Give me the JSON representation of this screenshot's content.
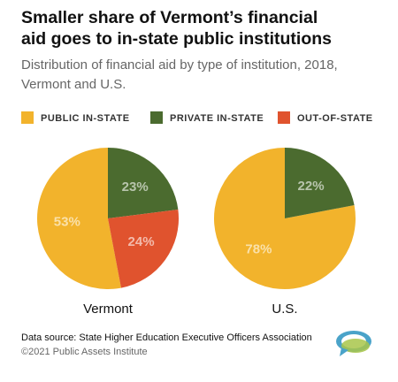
{
  "header": {
    "title": [
      "Smaller share of Vermont’s financial",
      "aid goes to in-state public institutions"
    ],
    "subtitle": [
      "Distribution of financial aid by type of institution, 2018,",
      "Vermont and U.S."
    ]
  },
  "chart_data": [
    {
      "type": "pie",
      "title": "Vermont",
      "categories": [
        "PUBLIC IN-STATE",
        "PRIVATE IN-STATE",
        "OUT-OF-STATE"
      ],
      "values": [
        53,
        23,
        24
      ],
      "value_labels": [
        "53%",
        "23%",
        "24%"
      ],
      "colors": [
        "#f2b32c",
        "#4b6b2f",
        "#e0532e"
      ]
    },
    {
      "type": "pie",
      "title": "U.S.",
      "categories": [
        "PUBLIC IN-STATE",
        "PRIVATE IN-STATE"
      ],
      "values": [
        78,
        22
      ],
      "value_labels": [
        "78%",
        "22%"
      ],
      "colors": [
        "#f2b32c",
        "#4b6b2f"
      ]
    }
  ],
  "footer": {
    "source": "Data source: State Higher Education Executive Officers Association",
    "credit": "©2021 Public Assets Institute"
  }
}
